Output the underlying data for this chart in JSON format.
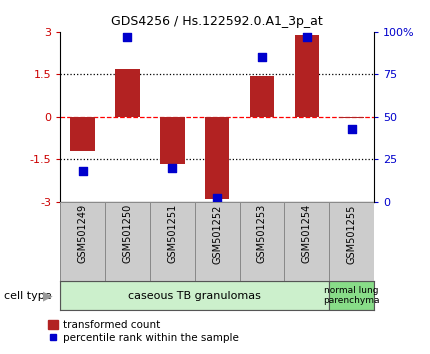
{
  "title": "GDS4256 / Hs.122592.0.A1_3p_at",
  "samples": [
    "GSM501249",
    "GSM501250",
    "GSM501251",
    "GSM501252",
    "GSM501253",
    "GSM501254",
    "GSM501255"
  ],
  "transformed_count": [
    -1.2,
    1.7,
    -1.65,
    -2.9,
    1.45,
    2.9,
    -0.05
  ],
  "percentile_rank": [
    18,
    97,
    20,
    2,
    85,
    97,
    43
  ],
  "ylim_left": [
    -3,
    3
  ],
  "ylim_right": [
    0,
    100
  ],
  "yticks_left": [
    -3,
    -1.5,
    0,
    1.5,
    3
  ],
  "yticks_right": [
    0,
    25,
    50,
    75,
    100
  ],
  "ytick_labels_right": [
    "0",
    "25",
    "50",
    "75",
    "100%"
  ],
  "hlines": [
    -1.5,
    0,
    1.5
  ],
  "hline_styles": [
    "dotted",
    "dashed",
    "dotted"
  ],
  "hline_colors": [
    "black",
    "red",
    "black"
  ],
  "bar_color": "#b22222",
  "dot_color": "#0000cc",
  "group1_label": "caseous TB granulomas",
  "group2_label": "normal lung\nparenchyma",
  "group1_color": "#ccf0cc",
  "group2_color": "#88dd88",
  "cell_type_label": "cell type",
  "legend1_label": "transformed count",
  "legend2_label": "percentile rank within the sample",
  "bar_width": 0.55,
  "dot_size": 30,
  "tick_color_left": "#cc0000",
  "tick_color_right": "#0000cc",
  "label_box_color": "#cccccc",
  "background_color": "#ffffff"
}
